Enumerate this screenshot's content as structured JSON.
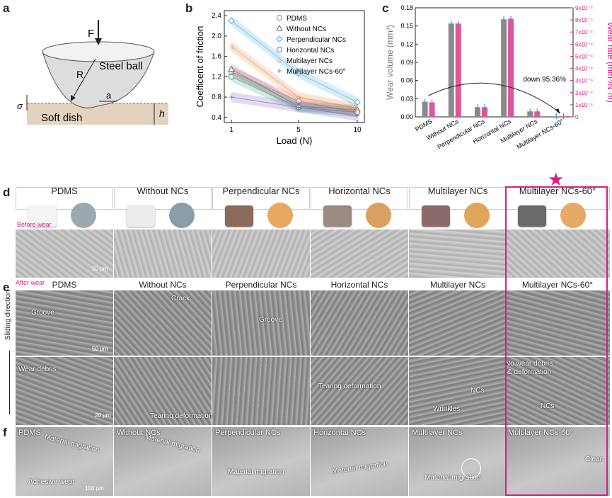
{
  "panel_labels": {
    "a": "a",
    "b": "b",
    "c": "c",
    "d": "d",
    "e": "e",
    "f": "f"
  },
  "schematic": {
    "force": "F",
    "ball": "Steel ball",
    "radius": "R",
    "contact": "a",
    "depth": "σ",
    "dish": "Soft dish",
    "height": "h"
  },
  "chart_b": {
    "type": "line",
    "ylabel": "Coefficent of friction",
    "xlabel": "Load (N)",
    "x": [
      1,
      5,
      10
    ],
    "xticks": [
      "1",
      "5",
      "10"
    ],
    "yticks": [
      "0.4",
      "0.8",
      "1.2",
      "1.6",
      "2.0",
      "2.4"
    ],
    "ylim": [
      0.3,
      2.5
    ],
    "series": [
      {
        "name": "PDMS",
        "marker": "o",
        "color": "#e0607e",
        "values": [
          1.3,
          0.72,
          0.5
        ]
      },
      {
        "name": "Without NCs",
        "marker": "tri",
        "color": "#666666",
        "values": [
          1.35,
          0.62,
          0.55
        ]
      },
      {
        "name": "Perpendicular NCs",
        "marker": "dia",
        "color": "#4aa8e8",
        "values": [
          2.3,
          1.27,
          0.7
        ]
      },
      {
        "name": "Horizontal NCs",
        "marker": "o",
        "color": "#2a9d7a",
        "values": [
          1.2,
          0.6,
          0.5
        ]
      },
      {
        "name": "Multilayer NCs",
        "marker": "star",
        "color": "#e8883a",
        "values": [
          1.8,
          0.8,
          0.58
        ]
      },
      {
        "name": "Multilayer NCs-60°",
        "marker": "plus",
        "color": "#7a5cc0",
        "values": [
          0.8,
          0.6,
          0.43
        ]
      }
    ]
  },
  "chart_c": {
    "type": "bar",
    "categories": [
      "PDMS",
      "Without NCs",
      "Perpendicular NCs",
      "Horizontal NCs",
      "Multilayer NCs",
      "Multilayer NCs-60°"
    ],
    "left_label": "Wear volume (mm³)",
    "right_label": "Wear rate (mm³/N·m)",
    "left_ticks": [
      "0.00",
      "0.03",
      "0.06",
      "0.09",
      "0.12",
      "0.15",
      "0.18"
    ],
    "right_ticks": [
      "0",
      "1x10⁻⁴",
      "2x10⁻⁴",
      "3x10⁻⁴",
      "4x10⁻⁴",
      "5x10⁻⁴",
      "6x10⁻⁴",
      "7x10⁻⁴",
      "8x10⁻⁴",
      "9x10⁻⁴"
    ],
    "left_max": 0.18,
    "volume": [
      0.025,
      0.154,
      0.016,
      0.161,
      0.009,
      0.001
    ],
    "rate": [
      0.00012,
      0.00077,
      8e-05,
      0.00081,
      4.5e-05,
      5e-06
    ],
    "right_max": 0.0009,
    "annotation": "down 95.36%",
    "colors": {
      "volume": "#8a8a8a",
      "rate": "#e0559a",
      "accent": "#d61f84"
    }
  },
  "row_d": {
    "headers": [
      "PDMS",
      "Without NCs",
      "Perpendicular NCs",
      "Horizontal NCs",
      "Multilayer NCs",
      "Multilayer NCs-60°"
    ],
    "before_wear": "Before wear",
    "scale": "50 μm"
  },
  "row_e": {
    "after_wear": "After wear",
    "headers": [
      "PDMS",
      "Without NCs",
      "Perpendicular NCs",
      "Horizontal NCs",
      "Multilayer NCs",
      "Multilayer NCs-60°"
    ],
    "sliding": "Sliding direction",
    "groove": "Groove",
    "crack": "Crack",
    "wear_debris": "Wear debris",
    "tearing": "Tearing deformation",
    "wrinkles": "Wrinkles",
    "ncs": "NCs",
    "no_wear": "No wear debris",
    "deformation": "& deformation",
    "scale_top": "50 μm",
    "scale_bottom": "20 μm"
  },
  "row_f": {
    "headers": [
      "PDMS",
      "Without NCs",
      "Perpendicular NCs",
      "Horizontal NCs",
      "Multilayer NCs",
      "Multilayer NCs-60°"
    ],
    "migration": "Material migration",
    "adhesive": "Adhesive wear",
    "clean": "Clean",
    "scale": "100 μm"
  }
}
